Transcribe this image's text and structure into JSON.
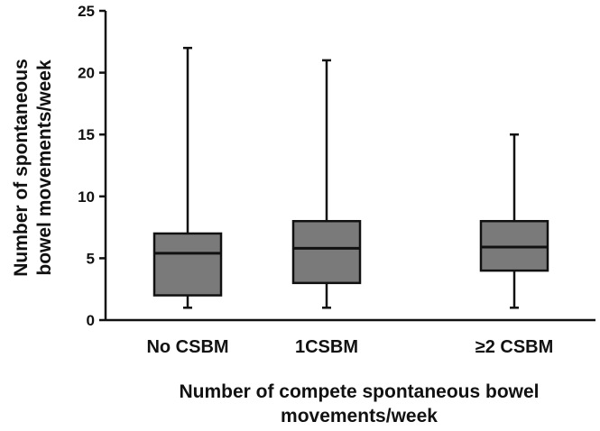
{
  "chart_data": {
    "type": "boxplot",
    "title": "",
    "xlabel_lines": [
      "Number of compete spontaneous bowel",
      "movements/week"
    ],
    "ylabel_lines": [
      "Number of spontaneous",
      "bowel movements/week"
    ],
    "ylim": [
      0,
      25
    ],
    "yticks": [
      0,
      5,
      10,
      15,
      20,
      25
    ],
    "categories": [
      "No CSBM",
      "1CSBM",
      "≥2 CSBM"
    ],
    "boxes": [
      {
        "name": "No CSBM",
        "min": 1,
        "q1": 2,
        "median": 5.4,
        "q3": 7,
        "max": 22
      },
      {
        "name": "1CSBM",
        "min": 1,
        "q1": 3,
        "median": 5.8,
        "q3": 8,
        "max": 21
      },
      {
        "name": "≥2 CSBM",
        "min": 1,
        "q1": 4,
        "median": 5.9,
        "q3": 8,
        "max": 15
      }
    ],
    "colors": {
      "box_fill": "#7a7a7a",
      "stroke": "#111111"
    }
  }
}
